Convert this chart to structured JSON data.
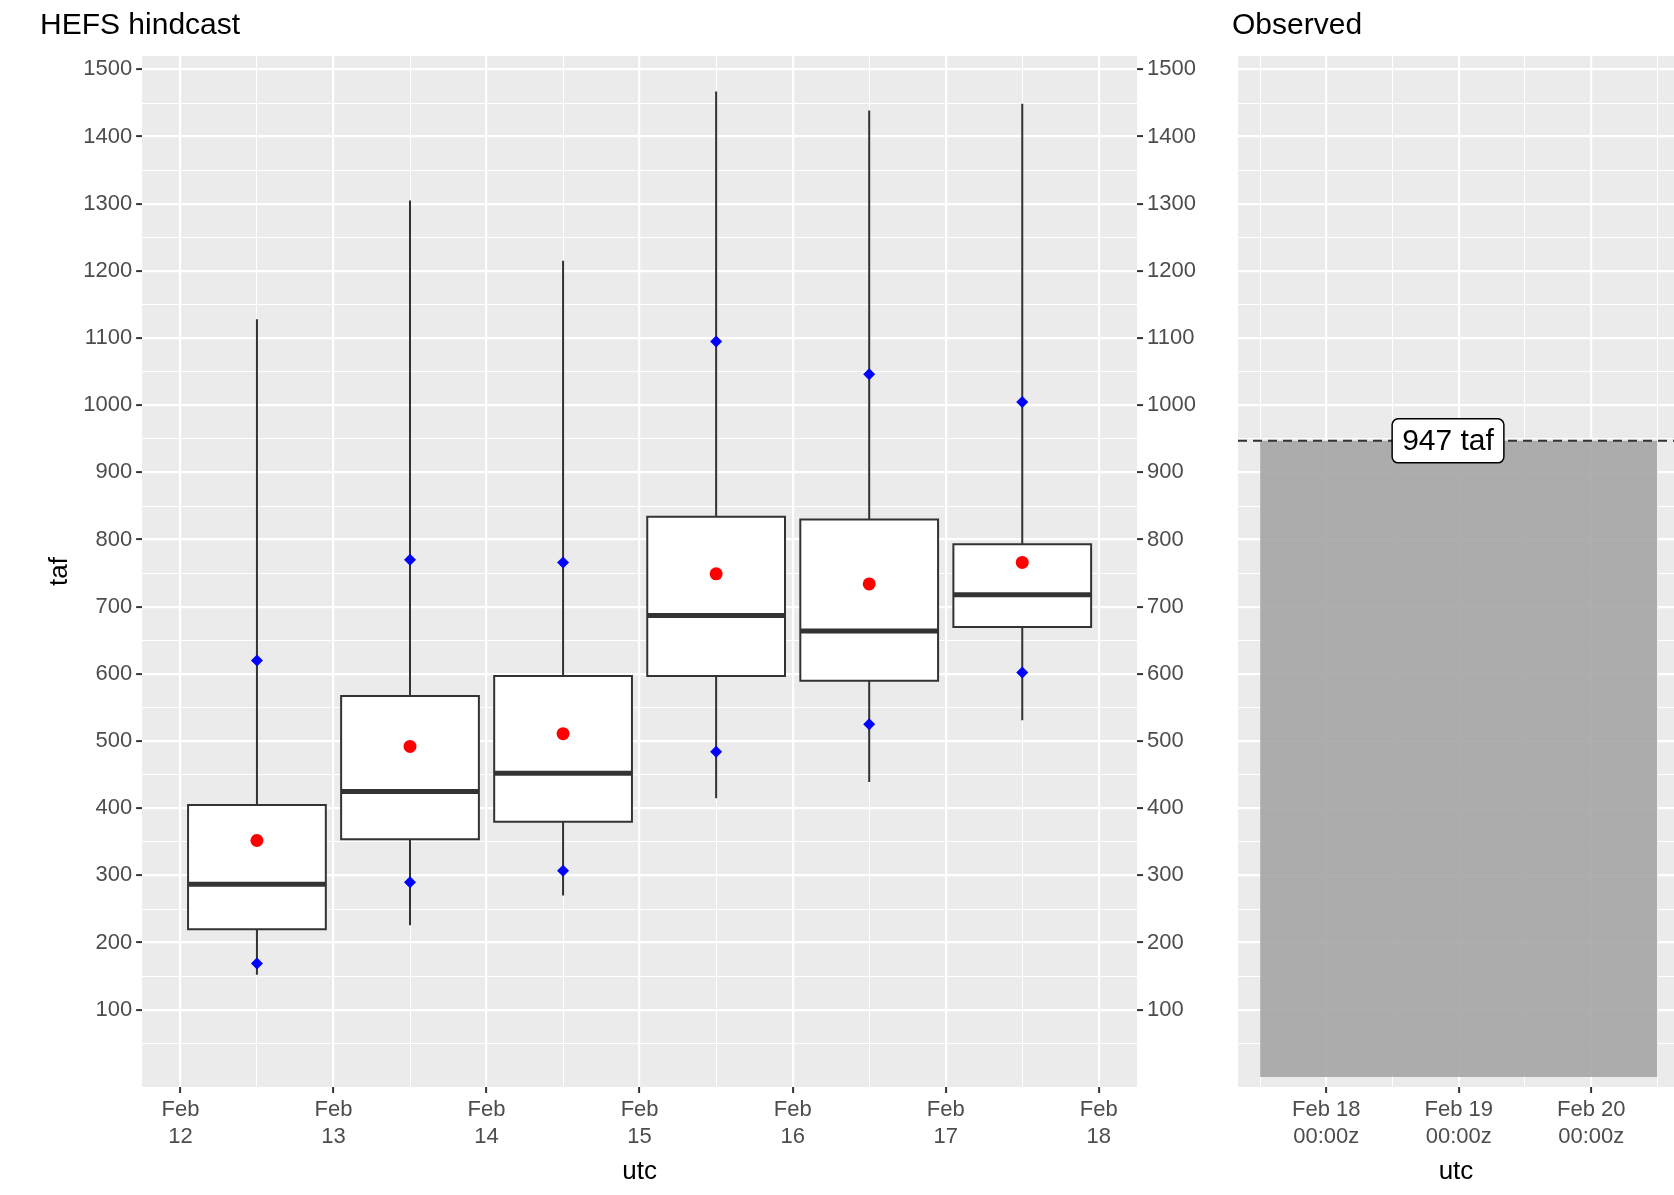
{
  "chart_data": [
    {
      "type": "box",
      "title": "HEFS hindcast",
      "xlabel": "utc",
      "ylabel": "taf",
      "grid": true,
      "x": [
        "--02-12T12:00",
        "--02-13T12:00",
        "--02-14T12:00",
        "--02-15T12:00",
        "--02-16T12:00",
        "--02-17T12:00"
      ],
      "series": [
        {
          "color": "#ffffff",
          "boxes": [
            {
              "low": 152,
              "q1": 220,
              "median": 287,
              "q3": 405,
              "high": 1128,
              "mean": 352
            },
            {
              "low": 226,
              "q1": 354,
              "median": 425,
              "q3": 567,
              "high": 1305,
              "mean": 492
            },
            {
              "low": 270,
              "q1": 380,
              "median": 452,
              "q3": 597,
              "high": 1215,
              "mean": 511
            },
            {
              "low": 415,
              "q1": 597,
              "median": 687,
              "q3": 834,
              "high": 1467,
              "mean": 749
            },
            {
              "low": 439,
              "q1": 590,
              "median": 664,
              "q3": 830,
              "high": 1439,
              "mean": 734
            },
            {
              "low": 531,
              "q1": 670,
              "median": 718,
              "q3": 793,
              "high": 1449,
              "mean": 766
            }
          ]
        },
        {
          "type": "scatter",
          "color": "#0000ff",
          "marker": "diamond",
          "x": [
            "--02-12T12:00",
            "--02-12T12:00",
            "--02-13T12:00",
            "--02-13T12:00",
            "--02-14T12:00",
            "--02-14T12:00",
            "--02-15T12:00",
            "--02-15T12:00",
            "--02-16T12:00",
            "--02-16T12:00",
            "--02-17T12:00",
            "--02-17T12:00"
          ],
          "values": [
            620,
            169,
            770,
            290,
            766,
            307,
            1095,
            484,
            1046,
            525,
            1005,
            602
          ]
        }
      ],
      "xlim": [
        "--02-11T18:00",
        "--02-18T06:00"
      ],
      "xticks": [
        {
          "value": "--02-12",
          "label": "Feb\n12"
        },
        {
          "value": "--02-12T12:00",
          "label": null
        },
        {
          "value": "--02-13",
          "label": "Feb\n13"
        },
        {
          "value": "--02-13T12:00",
          "label": null
        },
        {
          "value": "--02-14",
          "label": "Feb\n14"
        },
        {
          "value": "--02-14T12:00",
          "label": null
        },
        {
          "value": "--02-15",
          "label": "Feb\n15"
        },
        {
          "value": "--02-15T12:00",
          "label": null
        },
        {
          "value": "--02-16",
          "label": "Feb\n16"
        },
        {
          "value": "--02-16T12:00",
          "label": null
        },
        {
          "value": "--02-17",
          "label": "Feb\n17"
        },
        {
          "value": "--02-17T12:00",
          "label": null
        },
        {
          "value": "--02-18",
          "label": "Feb\n18"
        }
      ],
      "ylim": [
        -15,
        1520
      ],
      "yticks": [
        {
          "value": 50,
          "label": null
        },
        100,
        {
          "value": 150,
          "label": null
        },
        200,
        {
          "value": 250,
          "label": null
        },
        300,
        {
          "value": 350,
          "label": null
        },
        400,
        {
          "value": 450,
          "label": null
        },
        500,
        {
          "value": 550,
          "label": null
        },
        600,
        {
          "value": 650,
          "label": null
        },
        700,
        {
          "value": 750,
          "label": null
        },
        800,
        {
          "value": 850,
          "label": null
        },
        900,
        {
          "value": 950,
          "label": null
        },
        1000,
        {
          "value": 1050,
          "label": null
        },
        1100,
        {
          "value": 1150,
          "label": null
        },
        1200,
        {
          "value": 1250,
          "label": null
        },
        1300,
        {
          "value": 1350,
          "label": null
        },
        1400,
        {
          "value": 1450,
          "label": null
        },
        1500
      ],
      "y2lim": [
        -15,
        1520
      ],
      "y2ticks": [
        100,
        200,
        300,
        400,
        500,
        600,
        700,
        800,
        900,
        1000,
        1100,
        1200,
        1300,
        1400,
        1500
      ]
    },
    {
      "type": "area",
      "title": "Observed",
      "xlabel": "utc",
      "grid": true,
      "tick_labels": "x",
      "x": [
        "--02-17T12:00",
        "--02-20T12:00"
      ],
      "values": [
        947,
        947
      ],
      "color": "#a3a3a3",
      "xlim": [
        "--02-17T08:00",
        "--02-20T15:00"
      ],
      "xticks": [
        {
          "value": "--02-17T12:00",
          "label": null
        },
        {
          "value": "--02-18T00:00",
          "label": "Feb 18\n00:00z"
        },
        {
          "value": "--02-18T12:00",
          "label": null
        },
        {
          "value": "--02-19T00:00",
          "label": "Feb 19\n00:00z"
        },
        {
          "value": "--02-19T12:00",
          "label": null
        },
        {
          "value": "--02-20T00:00",
          "label": "Feb 20\n00:00z"
        },
        {
          "value": "--02-20T12:00",
          "label": null
        }
      ],
      "ylim": [
        -15,
        1520
      ],
      "yticks": [
        {
          "value": 50,
          "label": null
        },
        100,
        {
          "value": 150,
          "label": null
        },
        200,
        {
          "value": 250,
          "label": null
        },
        300,
        {
          "value": 350,
          "label": null
        },
        400,
        {
          "value": 450,
          "label": null
        },
        500,
        {
          "value": 550,
          "label": null
        },
        600,
        {
          "value": 650,
          "label": null
        },
        700,
        {
          "value": 750,
          "label": null
        },
        800,
        {
          "value": 850,
          "label": null
        },
        900,
        {
          "value": 950,
          "label": null
        },
        1000,
        {
          "value": 1050,
          "label": null
        },
        1100,
        {
          "value": 1150,
          "label": null
        },
        1200,
        {
          "value": 1250,
          "label": null
        },
        1300,
        {
          "value": 1350,
          "label": null
        },
        1400,
        {
          "value": 1450,
          "label": null
        },
        1500
      ],
      "ref_lines": [
        {
          "axis": "y",
          "value": 947,
          "label": "947 taf",
          "line_style": "dashed"
        }
      ]
    }
  ]
}
